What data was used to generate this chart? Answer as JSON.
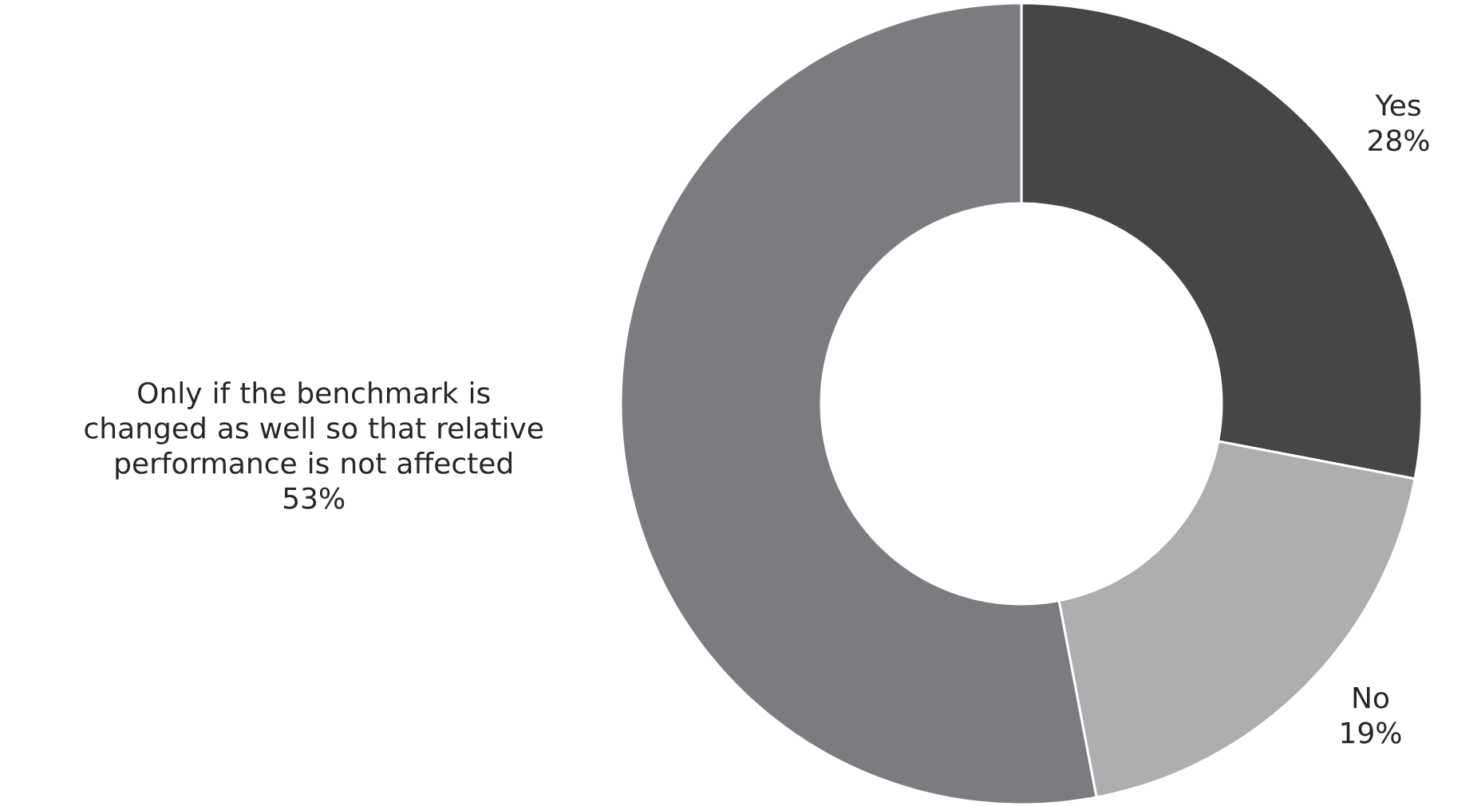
{
  "chart_data": {
    "type": "donut",
    "categories": [
      "Yes",
      "No",
      "Only if the benchmark is changed as well so that relative performance is not affected"
    ],
    "values": [
      28,
      19,
      53
    ],
    "colors": [
      "#454648",
      "#adaeb0",
      "#7b7c80"
    ],
    "value_labels": [
      "28%",
      "19%",
      "53%"
    ]
  }
}
